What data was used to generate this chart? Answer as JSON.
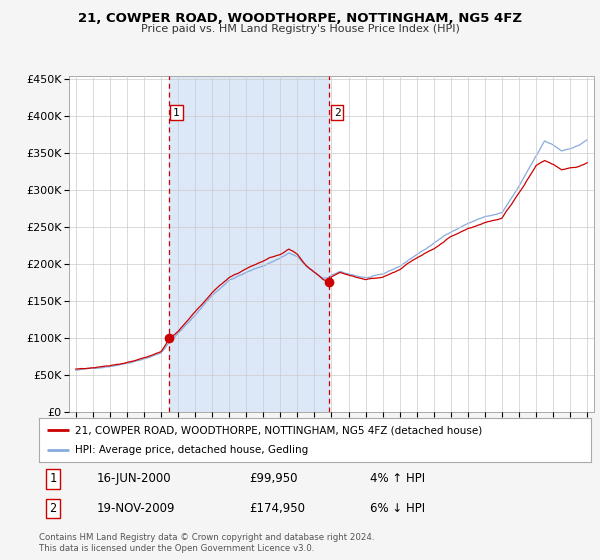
{
  "title1": "21, COWPER ROAD, WOODTHORPE, NOTTINGHAM, NG5 4FZ",
  "title2": "Price paid vs. HM Land Registry's House Price Index (HPI)",
  "legend_house": "21, COWPER ROAD, WOODTHORPE, NOTTINGHAM, NG5 4FZ (detached house)",
  "legend_hpi": "HPI: Average price, detached house, Gedling",
  "transaction1_date": "16-JUN-2000",
  "transaction1_price": "£99,950",
  "transaction1_hpi": "4% ↑ HPI",
  "transaction1_value": 99950,
  "transaction1_year": 2000.46,
  "transaction2_date": "19-NOV-2009",
  "transaction2_price": "£174,950",
  "transaction2_hpi": "6% ↓ HPI",
  "transaction2_value": 174950,
  "transaction2_year": 2009.88,
  "footer": "Contains HM Land Registry data © Crown copyright and database right 2024.\nThis data is licensed under the Open Government Licence v3.0.",
  "fig_bg_color": "#f5f5f5",
  "plot_bg": "#ffffff",
  "shade_color": "#dce8f8",
  "grid_color": "#cccccc",
  "hpi_line_color": "#88aadd",
  "house_line_color": "#cc0000",
  "marker_color": "#cc0000",
  "dashed_color": "#cc0000",
  "ylim_min": 0,
  "ylim_max": 455000,
  "ytick_step": 50000,
  "start_year": 1995,
  "end_year": 2025
}
